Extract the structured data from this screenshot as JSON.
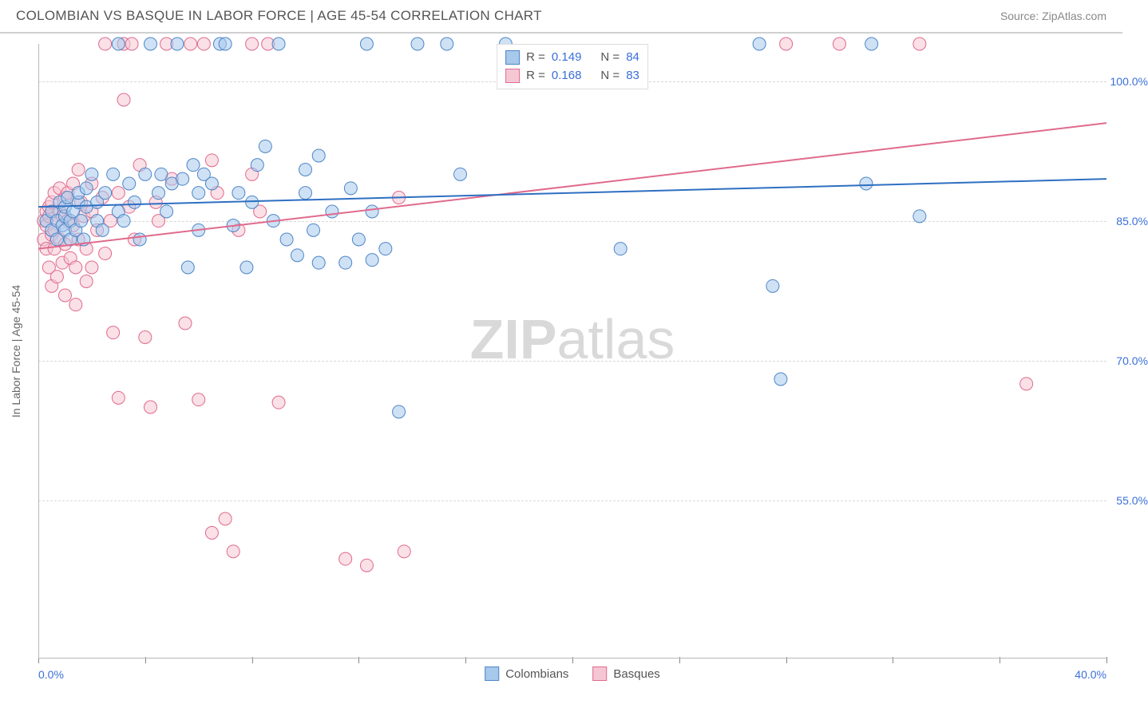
{
  "header": {
    "title": "COLOMBIAN VS BASQUE IN LABOR FORCE | AGE 45-54 CORRELATION CHART",
    "source_prefix": "Source: ",
    "source": "ZipAtlas.com"
  },
  "chart": {
    "type": "scatter",
    "ylabel": "In Labor Force | Age 45-54",
    "xlim": [
      0,
      40
    ],
    "ylim": [
      38,
      104
    ],
    "ytick_values": [
      55,
      70,
      85,
      100
    ],
    "ytick_labels": [
      "55.0%",
      "70.0%",
      "85.0%",
      "100.0%"
    ],
    "xtick_values": [
      0,
      4,
      8,
      12,
      16,
      20,
      24,
      28,
      32,
      36,
      40
    ],
    "xtick_labels_shown": {
      "0": "0.0%",
      "40": "40.0%"
    },
    "background_color": "#ffffff",
    "grid_color": "#d8d8d8",
    "axis_color": "#b8b8b8",
    "tick_label_color": "#3b6fd8",
    "marker_radius": 8,
    "marker_opacity": 0.55,
    "line_width": 2,
    "series": {
      "colombians": {
        "label": "Colombians",
        "fill": "#a6c9ec",
        "stroke": "#4e86c6",
        "line_color": "#2e6fc2",
        "R": "0.149",
        "N": "84",
        "trend": {
          "x1": 0,
          "y1": 86.5,
          "x2": 40,
          "y2": 89.5
        },
        "points": [
          [
            0.3,
            85
          ],
          [
            0.5,
            84
          ],
          [
            0.5,
            86
          ],
          [
            0.7,
            85
          ],
          [
            0.7,
            83
          ],
          [
            0.8,
            87
          ],
          [
            0.9,
            84.5
          ],
          [
            1.0,
            85.5
          ],
          [
            1.0,
            86.5
          ],
          [
            1.0,
            84
          ],
          [
            1.1,
            87.5
          ],
          [
            1.2,
            83
          ],
          [
            1.2,
            85
          ],
          [
            1.3,
            86
          ],
          [
            1.4,
            84
          ],
          [
            1.5,
            87
          ],
          [
            1.5,
            88
          ],
          [
            1.6,
            85
          ],
          [
            1.7,
            83
          ],
          [
            1.8,
            86.5
          ],
          [
            1.8,
            88.5
          ],
          [
            2.0,
            90
          ],
          [
            2.2,
            85
          ],
          [
            2.2,
            87
          ],
          [
            2.4,
            84
          ],
          [
            2.5,
            88
          ],
          [
            2.8,
            90
          ],
          [
            3.0,
            86
          ],
          [
            3.0,
            104
          ],
          [
            3.2,
            85
          ],
          [
            3.4,
            89
          ],
          [
            3.6,
            87
          ],
          [
            3.8,
            83
          ],
          [
            4.0,
            90
          ],
          [
            4.2,
            104
          ],
          [
            4.5,
            88
          ],
          [
            4.6,
            90
          ],
          [
            4.8,
            86
          ],
          [
            5.0,
            89
          ],
          [
            5.2,
            104
          ],
          [
            5.4,
            89.5
          ],
          [
            5.6,
            80
          ],
          [
            5.8,
            91
          ],
          [
            6.0,
            84
          ],
          [
            6.0,
            88
          ],
          [
            6.2,
            90
          ],
          [
            6.5,
            89
          ],
          [
            6.8,
            104
          ],
          [
            7.0,
            104
          ],
          [
            7.3,
            84.5
          ],
          [
            7.5,
            88
          ],
          [
            7.8,
            80
          ],
          [
            8.0,
            87
          ],
          [
            8.2,
            91
          ],
          [
            8.5,
            93
          ],
          [
            8.8,
            85
          ],
          [
            9.0,
            104
          ],
          [
            9.3,
            83
          ],
          [
            9.7,
            81.3
          ],
          [
            10.0,
            88
          ],
          [
            10.0,
            90.5
          ],
          [
            10.3,
            84
          ],
          [
            10.5,
            80.5
          ],
          [
            10.5,
            92
          ],
          [
            11.0,
            86
          ],
          [
            11.5,
            80.5
          ],
          [
            11.7,
            88.5
          ],
          [
            12.0,
            83
          ],
          [
            12.3,
            104
          ],
          [
            12.5,
            80.8
          ],
          [
            12.5,
            86
          ],
          [
            13.0,
            82
          ],
          [
            13.5,
            64.5
          ],
          [
            14.2,
            104
          ],
          [
            15.3,
            104
          ],
          [
            15.8,
            90
          ],
          [
            17.5,
            104
          ],
          [
            21.8,
            82
          ],
          [
            27.0,
            104
          ],
          [
            27.5,
            78
          ],
          [
            27.8,
            68
          ],
          [
            31.0,
            89
          ],
          [
            31.2,
            104
          ],
          [
            33.0,
            85.5
          ]
        ]
      },
      "basques": {
        "label": "Basques",
        "fill": "#f5c7d4",
        "stroke": "#e06a8c",
        "line_color": "#e06a8c",
        "R": "0.168",
        "N": "83",
        "trend": {
          "x1": 0,
          "y1": 82,
          "x2": 40,
          "y2": 95.5
        },
        "points": [
          [
            0.2,
            83
          ],
          [
            0.2,
            85
          ],
          [
            0.3,
            84.5
          ],
          [
            0.3,
            86
          ],
          [
            0.3,
            82
          ],
          [
            0.4,
            85.5
          ],
          [
            0.4,
            80
          ],
          [
            0.4,
            86.5
          ],
          [
            0.5,
            83.5
          ],
          [
            0.5,
            87
          ],
          [
            0.5,
            78
          ],
          [
            0.6,
            84
          ],
          [
            0.6,
            88
          ],
          [
            0.6,
            82
          ],
          [
            0.7,
            85
          ],
          [
            0.7,
            79
          ],
          [
            0.8,
            86
          ],
          [
            0.8,
            83
          ],
          [
            0.8,
            88.5
          ],
          [
            0.9,
            80.5
          ],
          [
            0.9,
            85.5
          ],
          [
            1.0,
            87.5
          ],
          [
            1.0,
            82.5
          ],
          [
            1.0,
            77
          ],
          [
            1.1,
            85
          ],
          [
            1.1,
            88
          ],
          [
            1.2,
            81
          ],
          [
            1.3,
            84.5
          ],
          [
            1.3,
            89
          ],
          [
            1.4,
            80
          ],
          [
            1.4,
            76
          ],
          [
            1.5,
            90.5
          ],
          [
            1.5,
            83
          ],
          [
            1.6,
            87
          ],
          [
            1.7,
            85.5
          ],
          [
            1.8,
            82
          ],
          [
            1.8,
            78.5
          ],
          [
            2.0,
            86
          ],
          [
            2.0,
            80
          ],
          [
            2.0,
            89
          ],
          [
            2.2,
            84
          ],
          [
            2.4,
            87.5
          ],
          [
            2.5,
            104
          ],
          [
            2.5,
            81.5
          ],
          [
            2.7,
            85
          ],
          [
            2.8,
            73
          ],
          [
            3.0,
            88
          ],
          [
            3.0,
            66
          ],
          [
            3.2,
            104
          ],
          [
            3.2,
            98
          ],
          [
            3.4,
            86.5
          ],
          [
            3.5,
            104
          ],
          [
            3.6,
            83
          ],
          [
            3.8,
            91
          ],
          [
            4.0,
            72.5
          ],
          [
            4.2,
            65
          ],
          [
            4.4,
            87
          ],
          [
            4.5,
            85
          ],
          [
            4.8,
            104
          ],
          [
            5.0,
            89.5
          ],
          [
            5.5,
            74
          ],
          [
            5.7,
            104
          ],
          [
            6.0,
            65.8
          ],
          [
            6.2,
            104
          ],
          [
            6.5,
            91.5
          ],
          [
            6.5,
            51.5
          ],
          [
            6.7,
            88
          ],
          [
            7.0,
            53
          ],
          [
            7.3,
            49.5
          ],
          [
            7.5,
            84
          ],
          [
            8.0,
            90
          ],
          [
            8.0,
            104
          ],
          [
            8.3,
            86
          ],
          [
            8.6,
            104
          ],
          [
            9.0,
            65.5
          ],
          [
            11.5,
            48.7
          ],
          [
            12.3,
            48
          ],
          [
            13.5,
            87.5
          ],
          [
            13.7,
            49.5
          ],
          [
            28.0,
            104
          ],
          [
            30.0,
            104
          ],
          [
            33.0,
            104
          ],
          [
            37.0,
            67.5
          ]
        ]
      }
    },
    "legend_top_prefix_R": "R = ",
    "legend_top_prefix_N": "N = ",
    "watermark": {
      "bold": "ZIP",
      "rest": "atlas"
    }
  }
}
